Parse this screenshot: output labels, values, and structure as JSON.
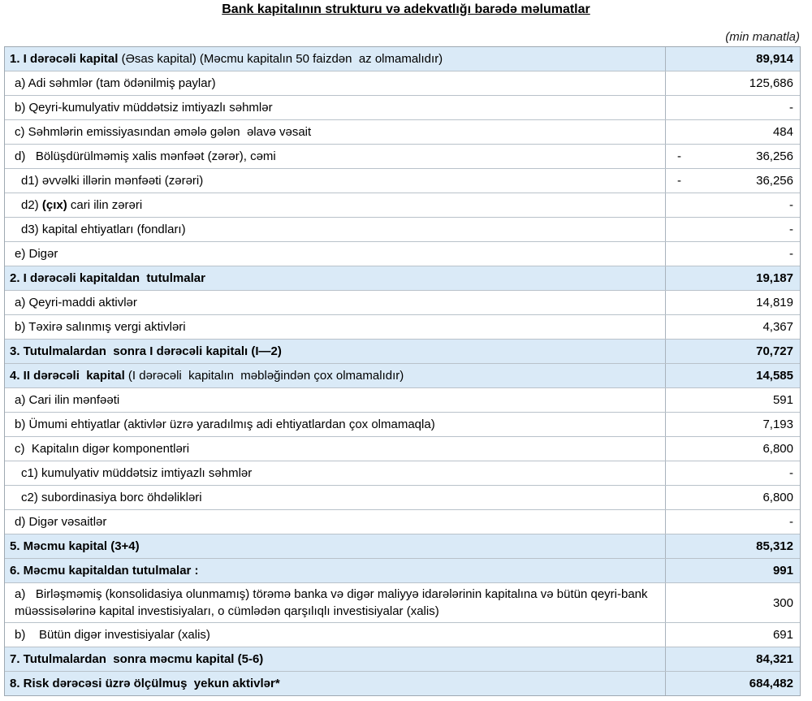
{
  "page": {
    "title": "Bank kapitalının strukturu və adekvatlığı barədə məlumatlar",
    "unit_note": "(min manatla)"
  },
  "colors": {
    "section_row_bg": "#daeaf7",
    "border": "#a9b3bc",
    "text": "#000000"
  },
  "table": {
    "rows": [
      {
        "type": "section",
        "indent": 0,
        "parts": [
          {
            "t": "1. I dərəcəli kapital ",
            "b": true
          },
          {
            "t": "(Əsas kapital) (Məcmu kapitalın 50 faizdən  az olmamalıdır)",
            "b": false
          }
        ],
        "neg": "",
        "value": "89,914"
      },
      {
        "type": "item",
        "indent": 1,
        "parts": [
          {
            "t": "a) Adi səhmlər (tam ödənilmiş paylar)",
            "b": false
          }
        ],
        "neg": "",
        "value": "125,686"
      },
      {
        "type": "item",
        "indent": 1,
        "parts": [
          {
            "t": "b) Qeyri-kumulyativ müddətsiz imtiyazlı səhmlər",
            "b": false
          }
        ],
        "neg": "",
        "value": "-"
      },
      {
        "type": "item",
        "indent": 1,
        "parts": [
          {
            "t": "c) Səhmlərin emissiyasından əmələ gələn  əlavə vəsait",
            "b": false
          }
        ],
        "neg": "",
        "value": "484"
      },
      {
        "type": "item",
        "indent": 1,
        "parts": [
          {
            "t": "d)   Bölüşdürülməmiş xalis mənfəət (zərər), cəmi",
            "b": false
          }
        ],
        "neg": "-",
        "value": "36,256"
      },
      {
        "type": "item",
        "indent": 2,
        "parts": [
          {
            "t": "d1) əvvəlki illərin mənfəəti (zərəri)",
            "b": false
          }
        ],
        "neg": "-",
        "value": "36,256"
      },
      {
        "type": "item",
        "indent": 2,
        "parts": [
          {
            "t": "d2) ",
            "b": false
          },
          {
            "t": "(çıx)",
            "b": true
          },
          {
            "t": " cari ilin zərəri",
            "b": false
          }
        ],
        "neg": "",
        "value": "-"
      },
      {
        "type": "item",
        "indent": 2,
        "parts": [
          {
            "t": "d3) kapital ehtiyatları (fondları)",
            "b": false
          }
        ],
        "neg": "",
        "value": "-"
      },
      {
        "type": "item",
        "indent": 1,
        "parts": [
          {
            "t": "e) Digər",
            "b": false
          }
        ],
        "neg": "",
        "value": "-"
      },
      {
        "type": "section",
        "indent": 0,
        "parts": [
          {
            "t": "2. I dərəcəli kapitaldan  tutulmalar",
            "b": true
          }
        ],
        "neg": "",
        "value": "19,187"
      },
      {
        "type": "item",
        "indent": 1,
        "parts": [
          {
            "t": "a) Qeyri-maddi aktivlər",
            "b": false
          }
        ],
        "neg": "",
        "value": "14,819"
      },
      {
        "type": "item",
        "indent": 1,
        "parts": [
          {
            "t": "b) Təxirə salınmış vergi aktivləri",
            "b": false
          }
        ],
        "neg": "",
        "value": "4,367"
      },
      {
        "type": "section",
        "indent": 0,
        "parts": [
          {
            "t": "3. Tutulmalardan  sonra I dərəcəli kapitalı (I—2)",
            "b": true
          }
        ],
        "neg": "",
        "value": "70,727"
      },
      {
        "type": "section",
        "indent": 0,
        "parts": [
          {
            "t": "4. II dərəcəli  kapital ",
            "b": true
          },
          {
            "t": "(I dərəcəli  kapitalın  məbləğindən çox olmamalıdır)",
            "b": false
          }
        ],
        "neg": "",
        "value": "14,585"
      },
      {
        "type": "item",
        "indent": 1,
        "parts": [
          {
            "t": "a) Cari ilin mənfəəti",
            "b": false
          }
        ],
        "neg": "",
        "value": "591"
      },
      {
        "type": "item",
        "indent": 1,
        "parts": [
          {
            "t": "b) Ümumi ehtiyatlar (aktivlər üzrə yaradılmış adi ehtiyatlardan çox olmamaqla)",
            "b": false
          }
        ],
        "neg": "",
        "value": "7,193"
      },
      {
        "type": "item",
        "indent": 1,
        "parts": [
          {
            "t": "c)  Kapitalın digər komponentləri",
            "b": false
          }
        ],
        "neg": "",
        "value": "6,800"
      },
      {
        "type": "item",
        "indent": 2,
        "parts": [
          {
            "t": "c1) kumulyativ müddətsiz imtiyazlı səhmlər",
            "b": false
          }
        ],
        "neg": "",
        "value": "-"
      },
      {
        "type": "item",
        "indent": 2,
        "parts": [
          {
            "t": "c2) subordinasiya borc öhdəlikləri",
            "b": false
          }
        ],
        "neg": "",
        "value": "6,800"
      },
      {
        "type": "item",
        "indent": 1,
        "parts": [
          {
            "t": "d) Digər vəsaitlər",
            "b": false
          }
        ],
        "neg": "",
        "value": "-"
      },
      {
        "type": "section",
        "indent": 0,
        "parts": [
          {
            "t": "5. Məcmu kapital (3+4)",
            "b": true
          }
        ],
        "neg": "",
        "value": "85,312"
      },
      {
        "type": "section",
        "indent": 0,
        "parts": [
          {
            "t": "6. Məcmu kapitaldan tutulmalar :",
            "b": true
          }
        ],
        "neg": "",
        "value": "991"
      },
      {
        "type": "item",
        "indent": 1,
        "wrap": true,
        "parts": [
          {
            "t": "a)   Birləşməmiş (konsolidasiya olunmamış) törəmə banka və digər maliyyə idarələrinin kapitalına və bütün qeyri-bank müəssisələrinə kapital investisiyaları, o cümlədən qarşılıqlı investisiyalar (xalis)",
            "b": false
          }
        ],
        "neg": "",
        "value": "300"
      },
      {
        "type": "item",
        "indent": 1,
        "parts": [
          {
            "t": "b)    Bütün digər investisiyalar (xalis)",
            "b": false
          }
        ],
        "neg": "",
        "value": "691"
      },
      {
        "type": "section",
        "indent": 0,
        "parts": [
          {
            "t": "7. Tutulmalardan  sonra məcmu kapital (5-6)",
            "b": true
          }
        ],
        "neg": "",
        "value": "84,321"
      },
      {
        "type": "section",
        "indent": 0,
        "parts": [
          {
            "t": "8. Risk dərəcəsi üzrə ölçülmuş  yekun aktivlər*",
            "b": true
          }
        ],
        "neg": "",
        "value": "684,482"
      }
    ]
  }
}
